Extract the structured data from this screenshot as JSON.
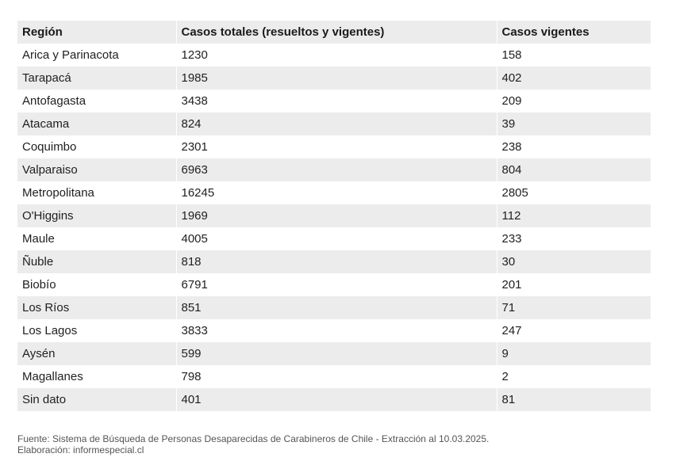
{
  "table": {
    "headers": [
      "Región",
      "Casos totales (resueltos y vigentes)",
      "Casos vigentes"
    ],
    "rows": [
      [
        "Arica y Parinacota",
        "1230",
        "158"
      ],
      [
        "Tarapacá",
        "1985",
        "402"
      ],
      [
        "Antofagasta",
        "3438",
        "209"
      ],
      [
        "Atacama",
        "824",
        "39"
      ],
      [
        "Coquimbo",
        "2301",
        "238"
      ],
      [
        "Valparaiso",
        "6963",
        "804"
      ],
      [
        "Metropolitana",
        "16245",
        "2805"
      ],
      [
        "O'Higgins",
        "1969",
        "112"
      ],
      [
        "Maule",
        "4005",
        "233"
      ],
      [
        "Ñuble",
        "818",
        "30"
      ],
      [
        "Biobío",
        "6791",
        "201"
      ],
      [
        "Los Ríos",
        "851",
        "71"
      ],
      [
        "Los Lagos",
        "3833",
        "247"
      ],
      [
        "Aysén",
        "599",
        "9"
      ],
      [
        "Magallanes",
        "798",
        "2"
      ],
      [
        "Sin dato",
        "401",
        "81"
      ]
    ]
  },
  "footer": {
    "source": "Fuente: Sistema de Búsqueda de Personas Desaparecidas de Carabineros de Chile - Extracción al 10.03.2025.",
    "credit": "Elaboración: informespecial.cl"
  },
  "colors": {
    "stripe": "#ececec",
    "background": "#ffffff",
    "text": "#1f1f1f",
    "footer_text": "#555555"
  }
}
